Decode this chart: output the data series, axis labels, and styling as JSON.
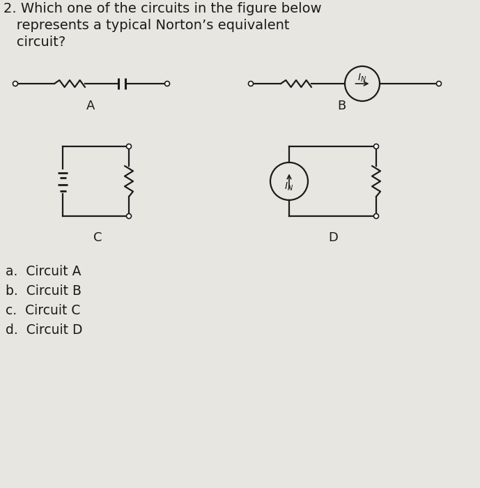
{
  "background_color": "#e8e6e0",
  "text_color": "#1a1a1a",
  "title_line1": "2. Which one of the circuits in the figure below",
  "title_line2": "   represents a typical Norton’s equivalent",
  "title_line3": "   circuit?",
  "choices": [
    "a.  Circuit A",
    "b.  Circuit B",
    "c.  Circuit C",
    "d.  Circuit D"
  ],
  "fig_width": 6.89,
  "fig_height": 7.0
}
